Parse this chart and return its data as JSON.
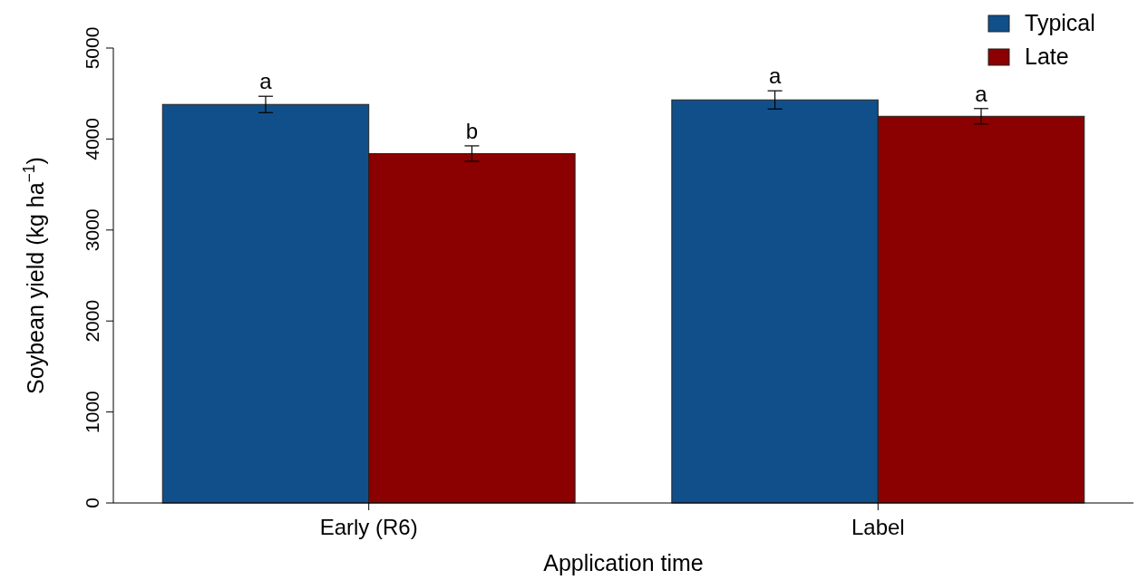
{
  "chart_data": {
    "type": "bar",
    "xlabel": "Application time",
    "ylabel": "Soybean yield (kg ha$^{−1}$)",
    "categories": [
      "Early (R6)",
      "Label"
    ],
    "series": [
      {
        "name": "Typical",
        "color": "#114f8a",
        "values": [
          4380,
          4430
        ],
        "errors": [
          90,
          100
        ]
      },
      {
        "name": "Late",
        "color": "#8b0000",
        "values": [
          3840,
          4250
        ],
        "errors": [
          85,
          85
        ]
      }
    ],
    "ylim": [
      0,
      5000
    ],
    "yticks": [
      0,
      1000,
      2000,
      3000,
      4000,
      5000
    ],
    "annotations": [
      "a",
      "b",
      "a",
      "a"
    ],
    "legend": "top right",
    "grid": false
  }
}
